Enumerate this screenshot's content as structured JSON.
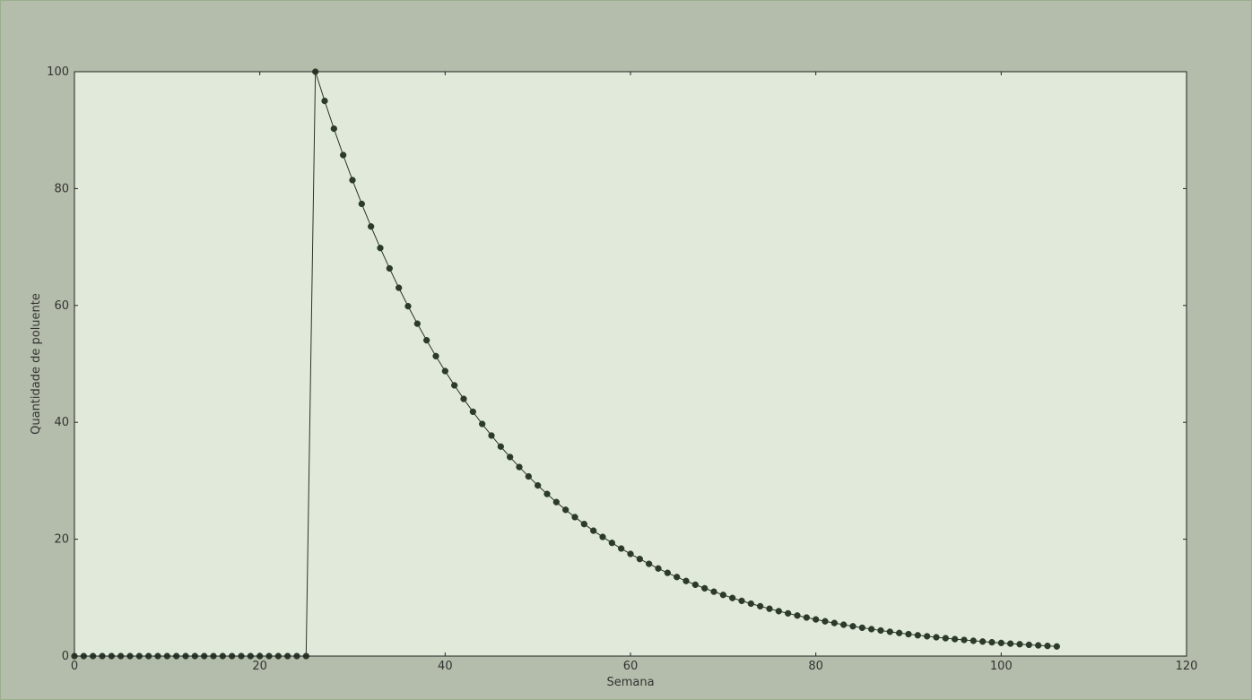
{
  "chart_data": {
    "type": "line",
    "title": "",
    "xlabel": "Semana",
    "ylabel": "Quantidade de poluente",
    "xlim": [
      0,
      120
    ],
    "ylim": [
      0,
      100
    ],
    "xticks": [
      "0",
      "20",
      "40",
      "60",
      "80",
      "100",
      "120"
    ],
    "yticks": [
      "0",
      "20",
      "40",
      "60",
      "80",
      "100"
    ],
    "grid": false,
    "legend": "none",
    "series": [
      {
        "marker": "circle",
        "x": [
          0,
          1,
          2,
          3,
          4,
          5,
          6,
          7,
          8,
          9,
          10,
          11,
          12,
          13,
          14,
          15,
          16,
          17,
          18,
          19,
          20,
          21,
          22,
          23,
          24,
          25,
          26,
          27,
          28,
          29,
          30,
          31,
          32,
          33,
          34,
          35,
          36,
          37,
          38,
          39,
          40,
          41,
          42,
          43,
          44,
          45,
          46,
          47,
          48,
          49,
          50,
          51,
          52,
          53,
          54,
          55,
          56,
          57,
          58,
          59,
          60,
          61,
          62,
          63,
          64,
          65,
          66,
          67,
          68,
          69,
          70,
          71,
          72,
          73,
          74,
          75,
          76,
          77,
          78,
          79,
          80,
          81,
          82,
          83,
          84,
          85,
          86,
          87,
          88,
          89,
          90,
          91,
          92,
          93,
          94,
          95,
          96,
          97,
          98,
          99,
          100,
          101,
          102,
          103,
          104,
          105,
          106
        ],
        "y": [
          0,
          0,
          0,
          0,
          0,
          0,
          0,
          0,
          0,
          0,
          0,
          0,
          0,
          0,
          0,
          0,
          0,
          0,
          0,
          0,
          0,
          0,
          0,
          0,
          0,
          0,
          100,
          95,
          90.25,
          85.74,
          81.45,
          77.38,
          73.51,
          69.83,
          66.34,
          63.02,
          59.87,
          56.88,
          54.04,
          51.33,
          48.77,
          46.33,
          44.01,
          41.81,
          39.72,
          37.74,
          35.85,
          34.06,
          32.35,
          30.74,
          29.2,
          27.74,
          26.35,
          25.03,
          23.78,
          22.59,
          21.46,
          20.39,
          19.37,
          18.4,
          17.48,
          16.61,
          15.78,
          14.99,
          14.24,
          13.53,
          12.85,
          12.21,
          11.6,
          11.02,
          10.47,
          9.94,
          9.45,
          8.97,
          8.53,
          8.1,
          7.69,
          7.31,
          6.94,
          6.6,
          6.27,
          5.95,
          5.66,
          5.37,
          5.1,
          4.85,
          4.61,
          4.38,
          4.16,
          3.95,
          3.75,
          3.56,
          3.39,
          3.22,
          3.06,
          2.9,
          2.76,
          2.62,
          2.49,
          2.36,
          2.25,
          2.13,
          2.03,
          1.93,
          1.83,
          1.74,
          1.65
        ]
      }
    ]
  },
  "colors": {
    "figure_bg": "#b4bdab",
    "plot_bg": "#e1eada",
    "line": "#2b3228",
    "marker": "#2b3a2a",
    "text": "#333333"
  }
}
